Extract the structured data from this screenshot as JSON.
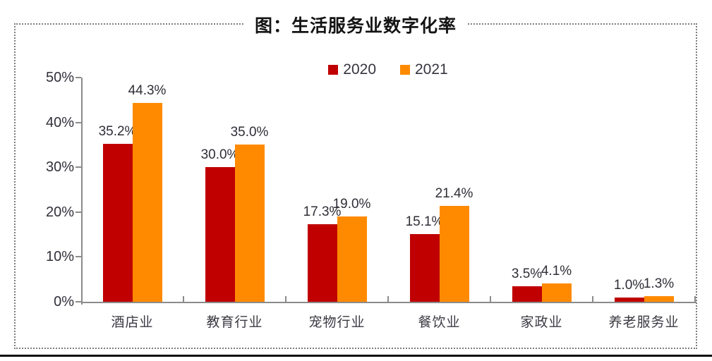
{
  "chart_data": {
    "type": "bar",
    "title": "图：生活服务业数字化率",
    "categories": [
      "酒店业",
      "教育行业",
      "宠物行业",
      "餐饮业",
      "家政业",
      "养老服务业"
    ],
    "series": [
      {
        "name": "2020",
        "color": "#C00000",
        "values": [
          35.2,
          30.0,
          17.3,
          15.1,
          3.5,
          1.0
        ],
        "labels": [
          "35.2%",
          "30.0%",
          "17.3%",
          "15.1%",
          "3.5%",
          "1.0%"
        ]
      },
      {
        "name": "2021",
        "color": "#FF8A00",
        "values": [
          44.3,
          35.0,
          19.0,
          21.4,
          4.1,
          1.3
        ],
        "labels": [
          "44.3%",
          "35.0%",
          "19.0%",
          "21.4%",
          "4.1%",
          "1.3%"
        ]
      }
    ],
    "y_ticks": [
      "0%",
      "10%",
      "20%",
      "30%",
      "40%",
      "50%"
    ],
    "ylim": [
      0,
      50
    ],
    "grid": false,
    "legend_position": "top-center",
    "data_labels": true
  },
  "colors": {
    "axis": "#8b8b8b",
    "border": "#7d7d7d",
    "title_text": "#141414",
    "label_text": "#30303a"
  }
}
